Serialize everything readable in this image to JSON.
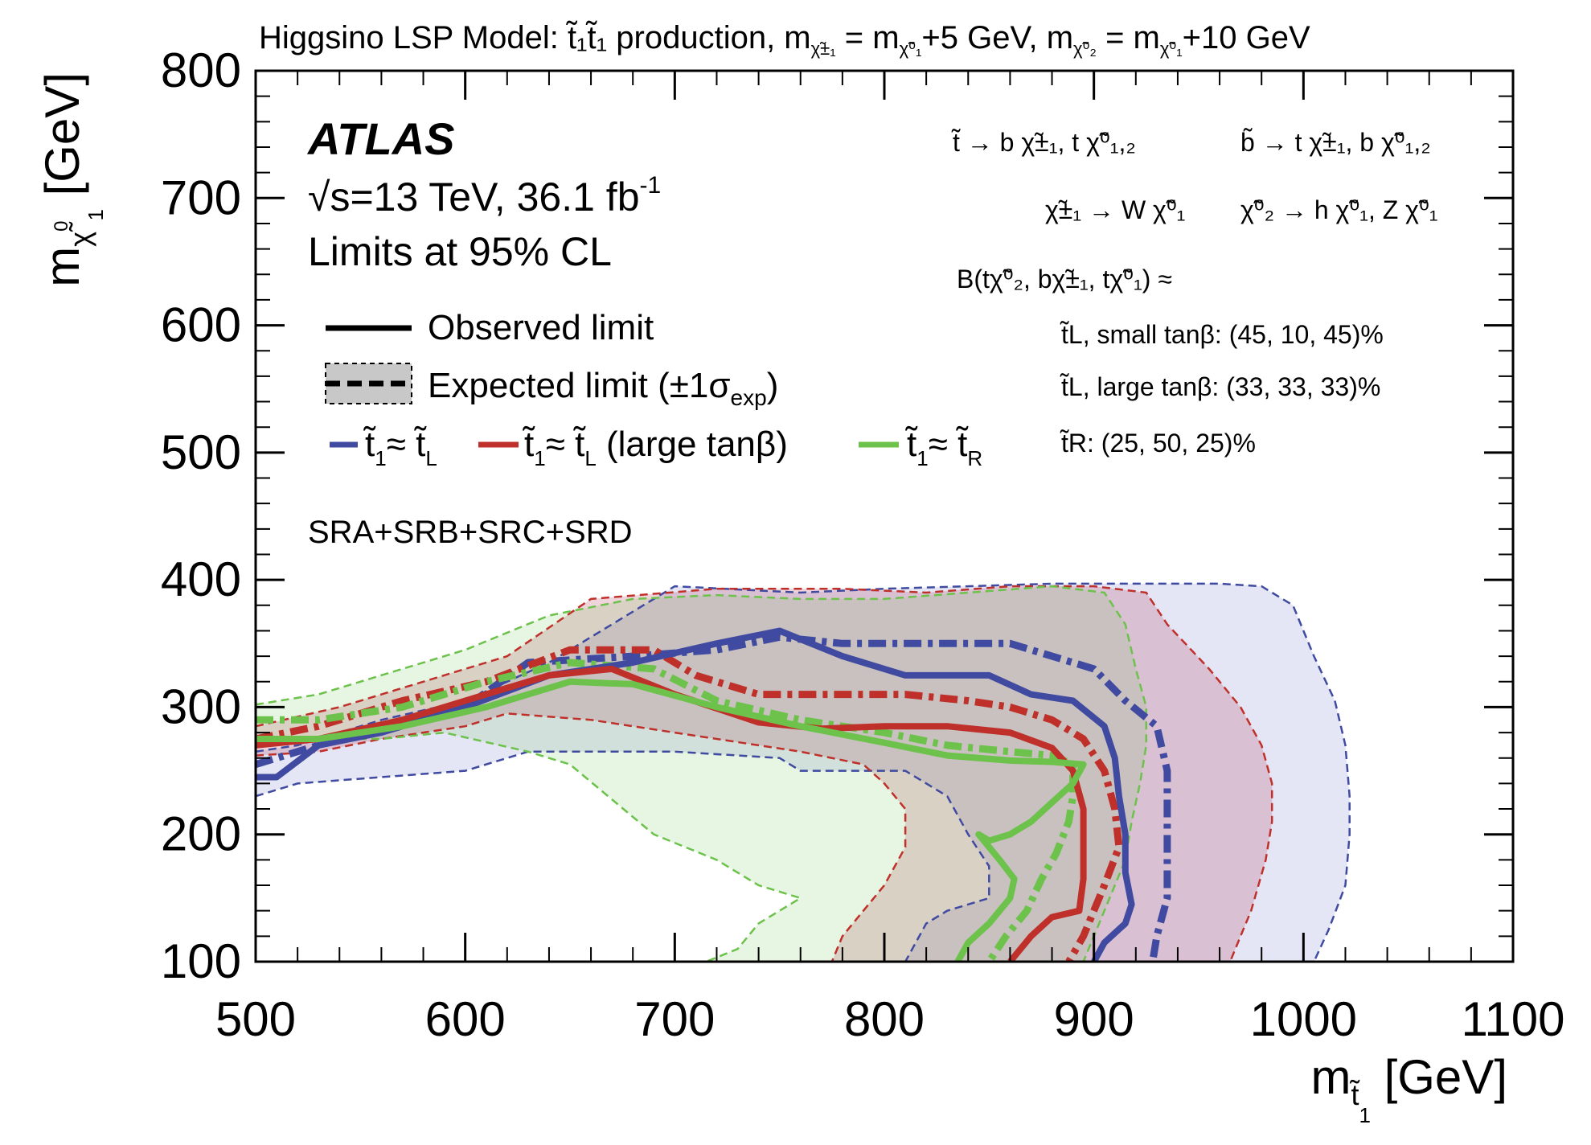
{
  "colors": {
    "blue": "#3f4aa0",
    "red": "#c0302a",
    "green": "#6cc24a",
    "band_gray": "#c0c0c0",
    "axis": "#000000"
  },
  "chart_data": {
    "type": "area",
    "title": {
      "lead": "Higgsino LSP Model:  ",
      "prod_sym": "t̃₁t̃₁",
      "prod_text": " production, ",
      "m": "m",
      "sub1": "χ̃±₁",
      "eq1": " = ",
      "sub2": "χ̃⁰₁",
      "rhs1": "+5 GeV, ",
      "sub3": "χ̃⁰₂",
      "eq2": " = ",
      "sub4": "χ̃⁰₁",
      "rhs2": "+10 GeV"
    },
    "xlabel": {
      "m": "m",
      "sub": "t̃",
      "subsub": "1",
      "unit": " [GeV]"
    },
    "ylabel": {
      "m": "m",
      "sub": "χ̃",
      "sup": "0",
      "subsub": "1",
      "unit": " [GeV]"
    },
    "xlim": [
      500,
      1100
    ],
    "ylim": [
      100,
      800
    ],
    "x_ticks": [
      "500",
      "600",
      "700",
      "800",
      "900",
      "1000",
      "1100"
    ],
    "y_ticks": [
      "100",
      "200",
      "300",
      "400",
      "500",
      "600",
      "700",
      "800"
    ],
    "atlas": {
      "label": "ATLAS",
      "energy": "√s=13 TeV, 36.1 fb",
      "lumi_sup": "-1",
      "cl": "Limits at 95% CL",
      "regions": "SRA+SRB+SRC+SRD"
    },
    "legend": {
      "observed": "Observed limit",
      "expected": "Expected limit (±1σ",
      "expected_sub": "exp",
      "expected_close": ")",
      "entries": [
        {
          "name": "t̃₁≈ t̃L",
          "sym": "t̃",
          "sub": "1",
          "approx": "≈ ",
          "sym2": "t̃",
          "sub2": "L",
          "suffix": ""
        },
        {
          "name": "t̃₁≈ t̃L (large tanβ)",
          "sym": "t̃",
          "sub": "1",
          "approx": "≈ ",
          "sym2": "t̃",
          "sub2": "L",
          "suffix": " (large tanβ)"
        },
        {
          "name": "t̃₁≈ t̃R",
          "sym": "t̃",
          "sub": "1",
          "approx": "≈ ",
          "sym2": "t̃",
          "sub2": "R",
          "suffix": ""
        }
      ]
    },
    "decays": {
      "stop": "t̃  →  b χ̃±₁, t χ̃⁰₁,₂",
      "sbottom": "b̃  →  t χ̃±₁, b χ̃⁰₁,₂",
      "chargino": "χ̃±₁ → W χ̃⁰₁",
      "neutralino": "χ̃⁰₂ → h χ̃⁰₁, Z χ̃⁰₁",
      "br_header": "B(tχ̃⁰₂, bχ̃±₁, tχ̃⁰₁) ≈",
      "br1": "t̃L, small tanβ: (45, 10, 45)%",
      "br2": "t̃L, large tanβ: (33, 33, 33)%",
      "br3": "t̃R: (25, 50, 25)%"
    },
    "series": [
      {
        "name": "t̃₁≈ t̃L",
        "color": "#3f4aa0",
        "observed": [
          [
            500,
            245
          ],
          [
            510,
            245
          ],
          [
            530,
            270
          ],
          [
            560,
            280
          ],
          [
            600,
            300
          ],
          [
            640,
            325
          ],
          [
            680,
            335
          ],
          [
            720,
            350
          ],
          [
            750,
            360
          ],
          [
            780,
            340
          ],
          [
            810,
            325
          ],
          [
            850,
            325
          ],
          [
            870,
            310
          ],
          [
            890,
            305
          ],
          [
            905,
            285
          ],
          [
            910,
            260
          ],
          [
            912,
            230
          ],
          [
            915,
            200
          ],
          [
            915,
            170
          ],
          [
            918,
            145
          ],
          [
            915,
            130
          ],
          [
            905,
            115
          ],
          [
            900,
            100
          ]
        ],
        "expected": [
          [
            500,
            255
          ],
          [
            520,
            265
          ],
          [
            560,
            285
          ],
          [
            600,
            300
          ],
          [
            630,
            335
          ],
          [
            680,
            340
          ],
          [
            720,
            345
          ],
          [
            750,
            355
          ],
          [
            780,
            350
          ],
          [
            820,
            350
          ],
          [
            860,
            350
          ],
          [
            880,
            340
          ],
          [
            900,
            330
          ],
          [
            915,
            305
          ],
          [
            930,
            285
          ],
          [
            935,
            250
          ],
          [
            935,
            200
          ],
          [
            935,
            150
          ],
          [
            930,
            120
          ],
          [
            928,
            100
          ]
        ],
        "band_upper": [
          [
            500,
            265
          ],
          [
            520,
            270
          ],
          [
            560,
            290
          ],
          [
            600,
            305
          ],
          [
            640,
            335
          ],
          [
            700,
            395
          ],
          [
            760,
            390
          ],
          [
            800,
            393
          ],
          [
            840,
            395
          ],
          [
            880,
            397
          ],
          [
            920,
            397
          ],
          [
            960,
            397
          ],
          [
            980,
            395
          ],
          [
            995,
            380
          ],
          [
            1005,
            340
          ],
          [
            1015,
            305
          ],
          [
            1020,
            270
          ],
          [
            1022,
            230
          ],
          [
            1022,
            200
          ],
          [
            1020,
            160
          ],
          [
            1012,
            125
          ],
          [
            1005,
            100
          ]
        ],
        "band_lower": [
          [
            500,
            230
          ],
          [
            520,
            240
          ],
          [
            560,
            245
          ],
          [
            600,
            250
          ],
          [
            630,
            265
          ],
          [
            650,
            265
          ],
          [
            700,
            265
          ],
          [
            750,
            260
          ],
          [
            760,
            250
          ],
          [
            790,
            250
          ],
          [
            810,
            250
          ],
          [
            830,
            230
          ],
          [
            840,
            200
          ],
          [
            850,
            175
          ],
          [
            850,
            150
          ],
          [
            830,
            140
          ],
          [
            820,
            130
          ],
          [
            810,
            100
          ]
        ]
      },
      {
        "name": "t̃₁≈ t̃L (large tanβ)",
        "color": "#c0302a",
        "observed": [
          [
            500,
            270
          ],
          [
            530,
            275
          ],
          [
            570,
            290
          ],
          [
            610,
            310
          ],
          [
            640,
            325
          ],
          [
            670,
            330
          ],
          [
            700,
            310
          ],
          [
            740,
            288
          ],
          [
            770,
            283
          ],
          [
            800,
            285
          ],
          [
            830,
            285
          ],
          [
            860,
            280
          ],
          [
            880,
            268
          ],
          [
            890,
            250
          ],
          [
            895,
            220
          ],
          [
            895,
            190
          ],
          [
            895,
            165
          ],
          [
            893,
            140
          ],
          [
            880,
            135
          ],
          [
            870,
            120
          ],
          [
            860,
            100
          ]
        ],
        "expected": [
          [
            500,
            275
          ],
          [
            530,
            285
          ],
          [
            570,
            305
          ],
          [
            610,
            320
          ],
          [
            650,
            345
          ],
          [
            690,
            345
          ],
          [
            710,
            325
          ],
          [
            740,
            310
          ],
          [
            780,
            310
          ],
          [
            810,
            310
          ],
          [
            840,
            305
          ],
          [
            860,
            300
          ],
          [
            880,
            290
          ],
          [
            895,
            275
          ],
          [
            905,
            250
          ],
          [
            910,
            220
          ],
          [
            912,
            190
          ],
          [
            905,
            160
          ],
          [
            895,
            120
          ],
          [
            888,
            100
          ]
        ],
        "band_upper": [
          [
            500,
            285
          ],
          [
            540,
            300
          ],
          [
            580,
            320
          ],
          [
            600,
            330
          ],
          [
            620,
            340
          ],
          [
            660,
            385
          ],
          [
            720,
            393
          ],
          [
            780,
            393
          ],
          [
            820,
            390
          ],
          [
            860,
            395
          ],
          [
            900,
            395
          ],
          [
            925,
            390
          ],
          [
            935,
            365
          ],
          [
            955,
            330
          ],
          [
            970,
            300
          ],
          [
            980,
            270
          ],
          [
            985,
            240
          ],
          [
            985,
            210
          ],
          [
            982,
            180
          ],
          [
            975,
            140
          ],
          [
            970,
            120
          ],
          [
            965,
            100
          ]
        ],
        "band_lower": [
          [
            500,
            262
          ],
          [
            530,
            265
          ],
          [
            560,
            275
          ],
          [
            600,
            285
          ],
          [
            620,
            295
          ],
          [
            660,
            290
          ],
          [
            700,
            280
          ],
          [
            740,
            270
          ],
          [
            760,
            265
          ],
          [
            790,
            255
          ],
          [
            800,
            240
          ],
          [
            810,
            220
          ],
          [
            810,
            190
          ],
          [
            800,
            160
          ],
          [
            790,
            140
          ],
          [
            780,
            120
          ],
          [
            775,
            100
          ]
        ]
      },
      {
        "name": "t̃₁≈ t̃R",
        "color": "#6cc24a",
        "observed": [
          [
            500,
            275
          ],
          [
            530,
            275
          ],
          [
            570,
            285
          ],
          [
            610,
            300
          ],
          [
            650,
            320
          ],
          [
            680,
            318
          ],
          [
            720,
            300
          ],
          [
            760,
            285
          ],
          [
            800,
            272
          ],
          [
            830,
            262
          ],
          [
            860,
            258
          ],
          [
            880,
            257
          ],
          [
            895,
            255
          ],
          [
            890,
            240
          ],
          [
            880,
            225
          ],
          [
            870,
            210
          ],
          [
            860,
            200
          ],
          [
            850,
            195
          ],
          [
            845,
            200
          ],
          [
            855,
            180
          ],
          [
            862,
            165
          ],
          [
            860,
            150
          ],
          [
            850,
            130
          ],
          [
            840,
            115
          ],
          [
            835,
            100
          ]
        ],
        "expected": [
          [
            500,
            290
          ],
          [
            530,
            290
          ],
          [
            570,
            300
          ],
          [
            610,
            320
          ],
          [
            650,
            335
          ],
          [
            690,
            330
          ],
          [
            720,
            305
          ],
          [
            760,
            290
          ],
          [
            800,
            280
          ],
          [
            830,
            270
          ],
          [
            860,
            265
          ],
          [
            880,
            262
          ],
          [
            890,
            255
          ],
          [
            890,
            230
          ],
          [
            888,
            210
          ],
          [
            882,
            185
          ],
          [
            875,
            165
          ],
          [
            868,
            140
          ],
          [
            858,
            120
          ],
          [
            850,
            100
          ]
        ],
        "band_upper": [
          [
            500,
            302
          ],
          [
            530,
            310
          ],
          [
            570,
            330
          ],
          [
            600,
            345
          ],
          [
            640,
            372
          ],
          [
            680,
            385
          ],
          [
            720,
            388
          ],
          [
            760,
            385
          ],
          [
            800,
            385
          ],
          [
            840,
            390
          ],
          [
            880,
            395
          ],
          [
            905,
            390
          ],
          [
            915,
            365
          ],
          [
            920,
            330
          ],
          [
            925,
            300
          ],
          [
            925,
            270
          ],
          [
            922,
            240
          ],
          [
            918,
            210
          ],
          [
            915,
            180
          ],
          [
            905,
            140
          ],
          [
            900,
            120
          ],
          [
            895,
            100
          ]
        ],
        "band_lower": [
          [
            500,
            275
          ],
          [
            530,
            275
          ],
          [
            560,
            275
          ],
          [
            590,
            280
          ],
          [
            630,
            265
          ],
          [
            650,
            255
          ],
          [
            690,
            200
          ],
          [
            720,
            180
          ],
          [
            740,
            160
          ],
          [
            760,
            150
          ],
          [
            740,
            130
          ],
          [
            730,
            110
          ],
          [
            715,
            100
          ]
        ]
      }
    ]
  }
}
